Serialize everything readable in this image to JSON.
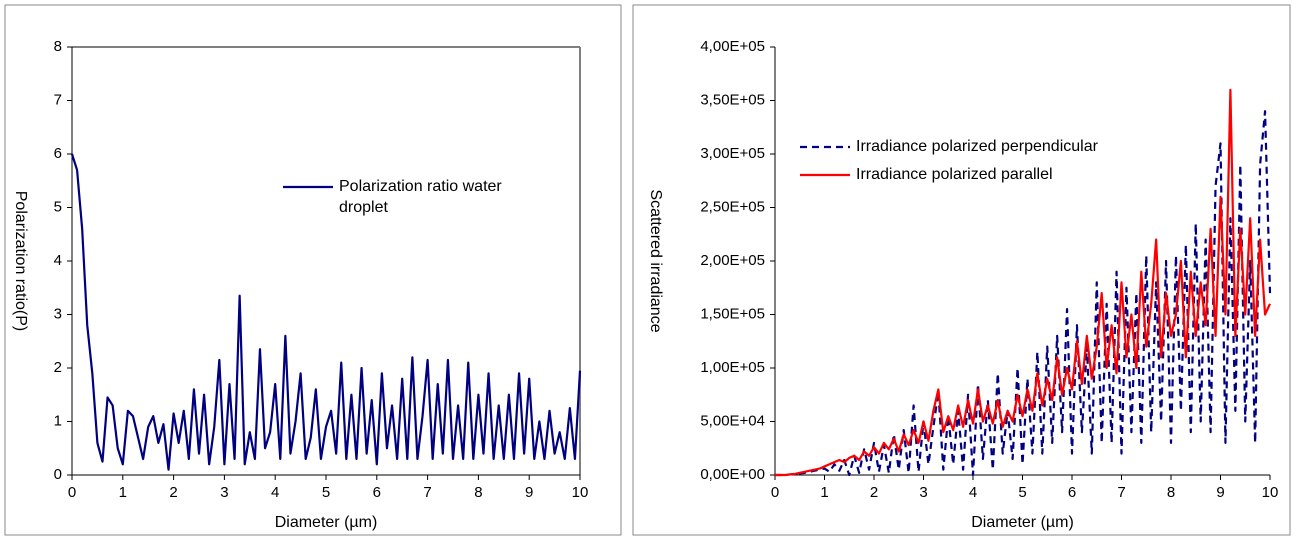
{
  "chart_data": [
    {
      "type": "line",
      "x_label": "Diameter (µm)",
      "y_label": "Polarization ratio(P)",
      "xlim": [
        0,
        10
      ],
      "xticks": [
        0,
        1,
        2,
        3,
        4,
        5,
        6,
        7,
        8,
        9,
        10
      ],
      "ylim": [
        0,
        8
      ],
      "yticks": [
        0,
        1,
        2,
        3,
        4,
        5,
        6,
        7,
        8
      ],
      "legend": "upper-center",
      "x": [
        0,
        0.1,
        0.2,
        0.3,
        0.4,
        0.5,
        0.6,
        0.7,
        0.8,
        0.9,
        1,
        1.1,
        1.2,
        1.3,
        1.4,
        1.5,
        1.6,
        1.7,
        1.8,
        1.9,
        2,
        2.1,
        2.2,
        2.3,
        2.4,
        2.5,
        2.6,
        2.7,
        2.8,
        2.9,
        3,
        3.1,
        3.2,
        3.3,
        3.4,
        3.5,
        3.6,
        3.7,
        3.8,
        3.9,
        4,
        4.1,
        4.2,
        4.3,
        4.4,
        4.5,
        4.6,
        4.7,
        4.8,
        4.9,
        5,
        5.1,
        5.2,
        5.3,
        5.4,
        5.5,
        5.6,
        5.7,
        5.8,
        5.9,
        6,
        6.1,
        6.2,
        6.3,
        6.4,
        6.5,
        6.6,
        6.7,
        6.8,
        6.9,
        7,
        7.1,
        7.2,
        7.3,
        7.4,
        7.5,
        7.6,
        7.7,
        7.8,
        7.9,
        8,
        8.1,
        8.2,
        8.3,
        8.4,
        8.5,
        8.6,
        8.7,
        8.8,
        8.9,
        9,
        9.1,
        9.2,
        9.3,
        9.4,
        9.5,
        9.6,
        9.7,
        9.8,
        9.9,
        10
      ],
      "series": [
        {
          "name": "Polarization ratio water droplet",
          "color": "#000080",
          "style": "solid",
          "values": [
            6.0,
            5.7,
            4.6,
            2.8,
            1.9,
            0.6,
            0.25,
            1.45,
            1.3,
            0.5,
            0.2,
            1.2,
            1.1,
            0.7,
            0.3,
            0.9,
            1.1,
            0.6,
            0.95,
            0.1,
            1.15,
            0.6,
            1.2,
            0.3,
            1.6,
            0.4,
            1.5,
            0.2,
            0.9,
            2.15,
            0.2,
            1.7,
            0.3,
            3.35,
            0.2,
            0.8,
            0.3,
            2.35,
            0.5,
            0.8,
            1.7,
            0.3,
            2.6,
            0.4,
            1.0,
            1.9,
            0.3,
            0.7,
            1.6,
            0.3,
            0.9,
            1.2,
            0.4,
            2.1,
            0.3,
            1.5,
            0.3,
            2.0,
            0.4,
            1.4,
            0.2,
            1.9,
            0.5,
            1.3,
            0.3,
            1.8,
            0.3,
            2.2,
            0.3,
            1.1,
            2.15,
            0.3,
            1.7,
            0.4,
            2.15,
            0.3,
            1.3,
            0.3,
            2.1,
            0.3,
            1.5,
            0.4,
            1.9,
            0.3,
            1.3,
            0.3,
            1.5,
            0.3,
            1.9,
            0.4,
            1.8,
            0.3,
            1.0,
            0.3,
            1.2,
            0.4,
            0.8,
            0.3,
            1.25,
            0.3,
            1.95
          ]
        }
      ]
    },
    {
      "type": "line",
      "x_label": "Diameter (µm)",
      "y_label": "Scattered irradiance",
      "xlim": [
        0,
        10
      ],
      "xticks": [
        0,
        1,
        2,
        3,
        4,
        5,
        6,
        7,
        8,
        9,
        10
      ],
      "ylim": [
        0,
        400000
      ],
      "yticks": [
        {
          "value": 0,
          "label": "0,00E+00"
        },
        {
          "value": 50000,
          "label": "5,00E+04"
        },
        {
          "value": 100000,
          "label": "1,00E+05"
        },
        {
          "value": 150000,
          "label": "1,50E+05"
        },
        {
          "value": 200000,
          "label": "2,00E+05"
        },
        {
          "value": 250000,
          "label": "2,50E+05"
        },
        {
          "value": 300000,
          "label": "3,00E+05"
        },
        {
          "value": 350000,
          "label": "3,50E+05"
        },
        {
          "value": 400000,
          "label": "4,00E+05"
        }
      ],
      "legend": "upper-left",
      "x": [
        0,
        0.1,
        0.2,
        0.3,
        0.4,
        0.5,
        0.6,
        0.7,
        0.8,
        0.9,
        1,
        1.1,
        1.2,
        1.3,
        1.4,
        1.5,
        1.6,
        1.7,
        1.8,
        1.9,
        2,
        2.1,
        2.2,
        2.3,
        2.4,
        2.5,
        2.6,
        2.7,
        2.8,
        2.9,
        3,
        3.1,
        3.2,
        3.3,
        3.4,
        3.5,
        3.6,
        3.7,
        3.8,
        3.9,
        4,
        4.1,
        4.2,
        4.3,
        4.4,
        4.5,
        4.6,
        4.7,
        4.8,
        4.9,
        5,
        5.1,
        5.2,
        5.3,
        5.4,
        5.5,
        5.6,
        5.7,
        5.8,
        5.9,
        6,
        6.1,
        6.2,
        6.3,
        6.4,
        6.5,
        6.6,
        6.7,
        6.8,
        6.9,
        7,
        7.1,
        7.2,
        7.3,
        7.4,
        7.5,
        7.6,
        7.7,
        7.8,
        7.9,
        8,
        8.1,
        8.2,
        8.3,
        8.4,
        8.5,
        8.6,
        8.7,
        8.8,
        8.9,
        9,
        9.1,
        9.2,
        9.3,
        9.4,
        9.5,
        9.6,
        9.7,
        9.8,
        9.9,
        10
      ],
      "series": [
        {
          "name": "Irradiance polarized perpendicular",
          "color": "#000080",
          "style": "dashed",
          "values": [
            0,
            0,
            0,
            500,
            1000,
            1500,
            2000,
            3000,
            4000,
            5000,
            6000,
            3000,
            10000,
            4000,
            14000,
            0,
            18000,
            2000,
            24000,
            5000,
            30000,
            3000,
            28000,
            2000,
            38000,
            5000,
            42000,
            2000,
            65000,
            3000,
            50000,
            10000,
            45000,
            78000,
            5000,
            55000,
            10000,
            60000,
            5000,
            75000,
            0,
            85000,
            15000,
            70000,
            5000,
            95000,
            20000,
            60000,
            15000,
            100000,
            10000,
            90000,
            20000,
            115000,
            20000,
            120000,
            30000,
            130000,
            40000,
            155000,
            20000,
            140000,
            40000,
            120000,
            20000,
            180000,
            30000,
            160000,
            30000,
            190000,
            20000,
            175000,
            40000,
            170000,
            30000,
            205000,
            40000,
            180000,
            50000,
            200000,
            30000,
            205000,
            60000,
            215000,
            40000,
            235000,
            50000,
            220000,
            40000,
            270000,
            310000,
            30000,
            240000,
            60000,
            290000,
            50000,
            200000,
            30000,
            290000,
            340000,
            170000
          ]
        },
        {
          "name": "Irradiance polarized parallel",
          "color": "#ff0000",
          "style": "solid",
          "values": [
            0,
            0,
            0,
            500,
            1000,
            2000,
            3000,
            4000,
            5000,
            6000,
            8000,
            10000,
            12000,
            14000,
            12000,
            16000,
            18000,
            14000,
            22000,
            18000,
            26000,
            20000,
            30000,
            24000,
            34000,
            22000,
            38000,
            28000,
            42000,
            30000,
            50000,
            32000,
            60000,
            80000,
            40000,
            55000,
            42000,
            65000,
            45000,
            70000,
            48000,
            80000,
            50000,
            65000,
            48000,
            70000,
            45000,
            60000,
            50000,
            75000,
            55000,
            80000,
            60000,
            95000,
            65000,
            90000,
            70000,
            110000,
            75000,
            100000,
            80000,
            125000,
            85000,
            130000,
            90000,
            120000,
            170000,
            100000,
            140000,
            95000,
            180000,
            110000,
            150000,
            100000,
            190000,
            120000,
            160000,
            220000,
            110000,
            170000,
            130000,
            150000,
            200000,
            110000,
            190000,
            130000,
            180000,
            140000,
            230000,
            130000,
            260000,
            150000,
            360000,
            130000,
            230000,
            150000,
            240000,
            130000,
            220000,
            150000,
            160000
          ]
        }
      ]
    }
  ]
}
